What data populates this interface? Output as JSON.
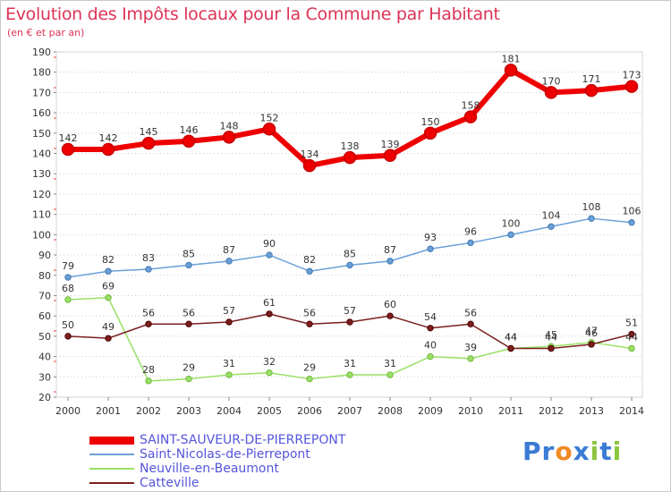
{
  "chart_data": {
    "type": "line",
    "title": "Evolution des Impôts locaux pour la Commune par Habitant",
    "subtitle": "(en € et par an)",
    "xlabel": "",
    "ylabel": "",
    "x": [
      "2000",
      "2001",
      "2002",
      "2003",
      "2004",
      "2005",
      "2006",
      "2007",
      "2008",
      "2009",
      "2010",
      "2011",
      "2012",
      "2013",
      "2014"
    ],
    "ylim": [
      20,
      190
    ],
    "yticks": [
      20,
      30,
      40,
      50,
      60,
      70,
      80,
      90,
      100,
      110,
      120,
      130,
      140,
      150,
      160,
      170,
      180,
      190
    ],
    "grid": "dotted horizontal",
    "legend_position": "bottom-left",
    "series": [
      {
        "name": "SAINT-SAUVEUR-DE-PIERREPONT",
        "color": "#ee0000",
        "values": [
          142,
          142,
          145,
          146,
          148,
          152,
          134,
          138,
          139,
          150,
          158,
          181,
          170,
          171,
          173
        ]
      },
      {
        "name": "Saint-Nicolas-de-Pierrepont",
        "color": "#6aa0d8",
        "values": [
          79,
          82,
          83,
          85,
          87,
          90,
          82,
          85,
          87,
          93,
          96,
          100,
          104,
          108,
          106
        ]
      },
      {
        "name": "Neuville-en-Beaumont",
        "color": "#99e066",
        "values": [
          68,
          69,
          28,
          29,
          31,
          32,
          29,
          31,
          31,
          40,
          39,
          44,
          45,
          47,
          44
        ]
      },
      {
        "name": "Catteville",
        "color": "#7a1f1f",
        "values": [
          50,
          49,
          56,
          56,
          57,
          61,
          56,
          57,
          60,
          54,
          56,
          44,
          44,
          46,
          51
        ]
      }
    ]
  },
  "logo": {
    "letters": [
      "P",
      "r",
      "o",
      "x",
      "i",
      "t",
      "i"
    ],
    "colors": [
      "#3a7bd5",
      "#3a7bd5",
      "#f08a24",
      "#3a7bd5",
      "#8cc63f",
      "#3a7bd5",
      "#8cc63f"
    ]
  }
}
